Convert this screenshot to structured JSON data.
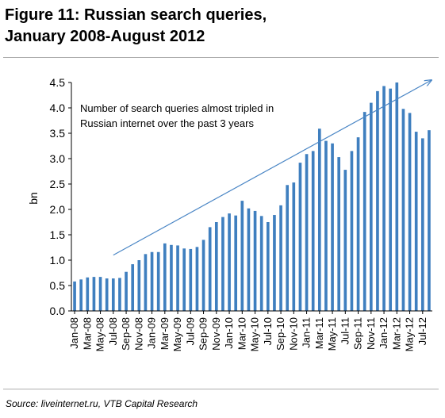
{
  "figure": {
    "title_line1": "Figure 11: Russian search queries,",
    "title_line2": "January 2008-August 2012",
    "source": "Source: liveinternet.ru, VTB Capital Research"
  },
  "colors": {
    "bar": "#3f7fbf",
    "trend_arrow": "#4a86c5",
    "axis": "#000000",
    "rule": "#aeaeae"
  },
  "chart_data": {
    "type": "bar",
    "ylabel": "bn",
    "xlabel": "",
    "ylim": [
      0,
      4.5
    ],
    "yticks": [
      0.0,
      0.5,
      1.0,
      1.5,
      2.0,
      2.5,
      3.0,
      3.5,
      4.0,
      4.5
    ],
    "ytick_labels": [
      "0.0",
      "0.5",
      "1.0",
      "1.5",
      "2.0",
      "2.5",
      "3.0",
      "3.5",
      "4.0",
      "4.5"
    ],
    "grid": false,
    "legend": "none",
    "annotation": "Number of search queries almost tripled in Russian internet over the past 3 years",
    "annotation_lines": [
      "Number of search queries almost tripled in",
      "Russian internet over the past 3 years"
    ],
    "trend_arrow": {
      "from": [
        "Jul-08",
        1.1
      ],
      "to": [
        "Aug-12",
        4.5
      ]
    },
    "categories": [
      "Jan-08",
      "Feb-08",
      "Mar-08",
      "Apr-08",
      "May-08",
      "Jun-08",
      "Jul-08",
      "Aug-08",
      "Sep-08",
      "Oct-08",
      "Nov-08",
      "Dec-08",
      "Jan-09",
      "Feb-09",
      "Mar-09",
      "Apr-09",
      "May-09",
      "Jun-09",
      "Jul-09",
      "Aug-09",
      "Sep-09",
      "Oct-09",
      "Nov-09",
      "Dec-09",
      "Jan-10",
      "Feb-10",
      "Mar-10",
      "Apr-10",
      "May-10",
      "Jun-10",
      "Jul-10",
      "Aug-10",
      "Sep-10",
      "Oct-10",
      "Nov-10",
      "Dec-10",
      "Jan-11",
      "Feb-11",
      "Mar-11",
      "Apr-11",
      "May-11",
      "Jun-11",
      "Jul-11",
      "Aug-11",
      "Sep-11",
      "Oct-11",
      "Nov-11",
      "Dec-11",
      "Jan-12",
      "Feb-12",
      "Mar-12",
      "Apr-12",
      "May-12",
      "Jun-12",
      "Jul-12",
      "Aug-12"
    ],
    "tick_labels": [
      "Jan-08",
      "Mar-08",
      "May-08",
      "Jul-08",
      "Sep-08",
      "Nov-08",
      "Jan-09",
      "Mar-09",
      "May-09",
      "Jul-09",
      "Sep-09",
      "Nov-09",
      "Jan-10",
      "Mar-10",
      "May-10",
      "Jul-10",
      "Sep-10",
      "Nov-10",
      "Jan-11",
      "Mar-11",
      "May-11",
      "Jul-11",
      "Sep-11",
      "Nov-11",
      "Jan-12",
      "Mar-12",
      "May-12",
      "Jul-12"
    ],
    "values": [
      0.58,
      0.62,
      0.66,
      0.67,
      0.67,
      0.64,
      0.64,
      0.65,
      0.77,
      0.92,
      1.0,
      1.12,
      1.16,
      1.16,
      1.33,
      1.3,
      1.29,
      1.23,
      1.22,
      1.26,
      1.4,
      1.65,
      1.75,
      1.85,
      1.92,
      1.88,
      2.17,
      2.02,
      1.97,
      1.87,
      1.75,
      1.89,
      2.08,
      2.48,
      2.53,
      2.92,
      3.09,
      3.15,
      3.59,
      3.35,
      3.3,
      3.03,
      2.78,
      3.15,
      3.42,
      3.92,
      4.1,
      4.33,
      4.43,
      4.38,
      4.5,
      3.98,
      3.9,
      3.53,
      3.4,
      3.56
    ]
  }
}
